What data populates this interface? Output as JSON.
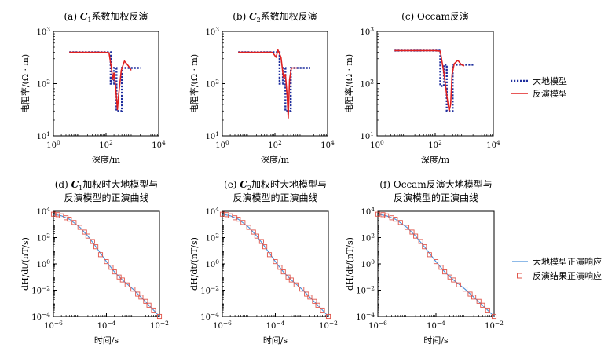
{
  "legends": {
    "top": [
      {
        "label": "大地模型",
        "color": "#1f2f9e",
        "style": "dotted"
      },
      {
        "label": "反演模型",
        "color": "#e02020",
        "style": "solid"
      }
    ],
    "bottom": [
      {
        "label": "大地模型正演响应",
        "color": "#4a90d9",
        "style": "line"
      },
      {
        "label": "反演结果正演响应",
        "color": "#e0554a",
        "style": "square"
      }
    ]
  },
  "chart_data": [
    {
      "type": "line",
      "title": "(a) C1系数加权反演",
      "xlabel": "深度/m",
      "ylabel": "电阻率/(Ω · m)",
      "xscale": "log",
      "yscale": "log",
      "xlim": [
        1,
        10000
      ],
      "ylim": [
        10,
        1000
      ],
      "xticks": [
        "10^0",
        "10^2",
        "10^4"
      ],
      "yticks": [
        "10^1",
        "10^2",
        "10^3"
      ],
      "series": [
        {
          "name": "大地模型",
          "x": [
            4,
            150,
            150,
            200,
            200,
            250,
            250,
            400,
            400,
            2200
          ],
          "y": [
            400,
            400,
            100,
            100,
            200,
            200,
            30,
            30,
            200,
            200
          ]
        },
        {
          "name": "反演模型",
          "x": [
            4,
            90,
            130,
            160,
            180,
            200,
            230,
            270,
            300,
            380,
            500,
            700,
            900
          ],
          "y": [
            400,
            400,
            390,
            200,
            120,
            160,
            90,
            32,
            60,
            180,
            270,
            220,
            180
          ]
        }
      ]
    },
    {
      "type": "line",
      "title": "(b) C2系数加权反演",
      "xlabel": "深度/m",
      "ylabel": "电阻率/(Ω · m)",
      "xscale": "log",
      "yscale": "log",
      "xlim": [
        1,
        10000
      ],
      "ylim": [
        10,
        1000
      ],
      "xticks": [
        "10^0",
        "10^2",
        "10^4"
      ],
      "yticks": [
        "10^1",
        "10^2",
        "10^3"
      ],
      "series": [
        {
          "name": "大地模型",
          "x": [
            4,
            150,
            150,
            200,
            200,
            250,
            250,
            400,
            400,
            2200
          ],
          "y": [
            400,
            400,
            100,
            100,
            200,
            200,
            30,
            30,
            200,
            200
          ]
        },
        {
          "name": "反演模型",
          "x": [
            4,
            80,
            110,
            130,
            170,
            210,
            250,
            290,
            320,
            360,
            420,
            550,
            700
          ],
          "y": [
            400,
            400,
            320,
            440,
            320,
            130,
            150,
            60,
            22,
            120,
            200,
            200,
            200
          ]
        }
      ]
    },
    {
      "type": "line",
      "title": "(c) Occam反演",
      "xlabel": "深度/m",
      "ylabel": "电阻率/(Ω · m)",
      "xscale": "log",
      "yscale": "log",
      "xlim": [
        1,
        10000
      ],
      "ylim": [
        10,
        1000
      ],
      "xticks": [
        "10^0",
        "10^2",
        "10^4"
      ],
      "yticks": [
        "10^1",
        "10^2",
        "10^3"
      ],
      "series": [
        {
          "name": "大地模型",
          "x": [
            4,
            150,
            150,
            200,
            200,
            250,
            250,
            400,
            400,
            2200
          ],
          "y": [
            430,
            430,
            90,
            90,
            230,
            230,
            30,
            30,
            230,
            230
          ]
        },
        {
          "name": "反演模型",
          "x": [
            4,
            100,
            150,
            200,
            250,
            300,
            340,
            380,
            450,
            600,
            800,
            1000
          ],
          "y": [
            430,
            430,
            420,
            160,
            60,
            30,
            40,
            150,
            240,
            280,
            230,
            220
          ]
        }
      ]
    },
    {
      "type": "line",
      "title": "(d) C1加权时大地模型与",
      "title2": "反演模型的正演曲线",
      "xlabel": "时间/s",
      "ylabel": "dH/dt/(nT/s)",
      "xscale": "log",
      "yscale": "log",
      "xlim": [
        1e-06,
        0.01
      ],
      "ylim": [
        0.0001,
        10000
      ],
      "xticks": [
        "10^-6",
        "10^-4",
        "10^-2"
      ],
      "yticks": [
        "10^-4",
        "10^-2",
        "10^0",
        "10^2",
        "10^4"
      ],
      "series": [
        {
          "name": "大地模型正演响应",
          "x": [
            1e-06,
            2e-06,
            4e-06,
            1e-05,
            2e-05,
            4e-05,
            0.0001,
            0.0002,
            0.0004,
            0.001,
            0.002,
            0.004,
            0.01
          ],
          "y": [
            6000,
            4500,
            2500,
            600,
            130,
            20,
            1.5,
            0.25,
            0.06,
            0.012,
            0.003,
            0.0007,
            0.0001
          ]
        },
        {
          "name": "反演结果正演响应",
          "x": [
            1e-06,
            1.5e-06,
            2e-06,
            3e-06,
            4e-06,
            6e-06,
            1e-05,
            1.5e-05,
            2e-05,
            3e-05,
            4e-05,
            6e-05,
            0.0001,
            0.00015,
            0.0002,
            0.0003,
            0.0004,
            0.0006,
            0.001,
            0.0015,
            0.002,
            0.003,
            0.004,
            0.006,
            0.01
          ],
          "y": [
            6000,
            5500,
            4500,
            3200,
            2500,
            1400,
            600,
            260,
            130,
            50,
            20,
            5,
            1.5,
            0.55,
            0.25,
            0.1,
            0.06,
            0.025,
            0.012,
            0.005,
            0.003,
            0.0014,
            0.0007,
            0.0003,
            0.0001
          ]
        }
      ]
    },
    {
      "type": "line",
      "title": "(e) C2加权时大地模型与",
      "title2": "反演模型的正演曲线",
      "xlabel": "时间/s",
      "ylabel": "dH/dt/(nT/s)",
      "xscale": "log",
      "yscale": "log",
      "xlim": [
        1e-06,
        0.01
      ],
      "ylim": [
        0.0001,
        10000
      ],
      "xticks": [
        "10^-6",
        "10^-4",
        "10^-2"
      ],
      "yticks": [
        "10^-4",
        "10^-2",
        "10^0",
        "10^2",
        "10^4"
      ],
      "series": [
        {
          "name": "大地模型正演响应",
          "x": [
            1e-06,
            2e-06,
            4e-06,
            1e-05,
            2e-05,
            4e-05,
            0.0001,
            0.0002,
            0.0004,
            0.001,
            0.002,
            0.004,
            0.01
          ],
          "y": [
            6000,
            4500,
            2500,
            600,
            130,
            20,
            1.5,
            0.25,
            0.06,
            0.012,
            0.003,
            0.0007,
            0.0001
          ]
        },
        {
          "name": "反演结果正演响应",
          "x": [
            1e-06,
            1.5e-06,
            2e-06,
            3e-06,
            4e-06,
            6e-06,
            1e-05,
            1.5e-05,
            2e-05,
            3e-05,
            4e-05,
            6e-05,
            0.0001,
            0.00015,
            0.0002,
            0.0003,
            0.0004,
            0.0006,
            0.001,
            0.0015,
            0.002,
            0.003,
            0.004,
            0.006,
            0.01
          ],
          "y": [
            6000,
            5500,
            4500,
            3200,
            2500,
            1400,
            600,
            260,
            130,
            50,
            20,
            5,
            1.5,
            0.55,
            0.25,
            0.1,
            0.06,
            0.025,
            0.012,
            0.005,
            0.003,
            0.0014,
            0.0007,
            0.0003,
            0.0001
          ]
        }
      ]
    },
    {
      "type": "line",
      "title": "(f) Occam反演大地模型与",
      "title2": "反演模型的正演曲线",
      "xlabel": "时间/s",
      "ylabel": "dH/dt/(nT/s)",
      "xscale": "log",
      "yscale": "log",
      "xlim": [
        1e-06,
        0.01
      ],
      "ylim": [
        0.0001,
        10000
      ],
      "xticks": [
        "10^-6",
        "10^-4",
        "10^-2"
      ],
      "yticks": [
        "10^-4",
        "10^-2",
        "10^0",
        "10^2",
        "10^4"
      ],
      "series": [
        {
          "name": "大地模型正演响应",
          "x": [
            1e-06,
            2e-06,
            4e-06,
            1e-05,
            2e-05,
            4e-05,
            0.0001,
            0.0002,
            0.0004,
            0.001,
            0.002,
            0.004,
            0.01
          ],
          "y": [
            6000,
            4500,
            2500,
            600,
            130,
            20,
            1.5,
            0.25,
            0.06,
            0.012,
            0.003,
            0.0007,
            0.0001
          ]
        },
        {
          "name": "反演结果正演响应",
          "x": [
            1e-06,
            1.5e-06,
            2e-06,
            3e-06,
            4e-06,
            6e-06,
            1e-05,
            1.5e-05,
            2e-05,
            3e-05,
            4e-05,
            6e-05,
            0.0001,
            0.00015,
            0.0002,
            0.0003,
            0.0004,
            0.0006,
            0.001,
            0.0015,
            0.002,
            0.003,
            0.004,
            0.006,
            0.01
          ],
          "y": [
            6000,
            5500,
            4500,
            3200,
            2500,
            1400,
            600,
            260,
            130,
            50,
            20,
            5,
            1.5,
            0.55,
            0.25,
            0.1,
            0.06,
            0.025,
            0.012,
            0.005,
            0.003,
            0.0014,
            0.0007,
            0.0003,
            0.0001
          ]
        }
      ]
    }
  ]
}
